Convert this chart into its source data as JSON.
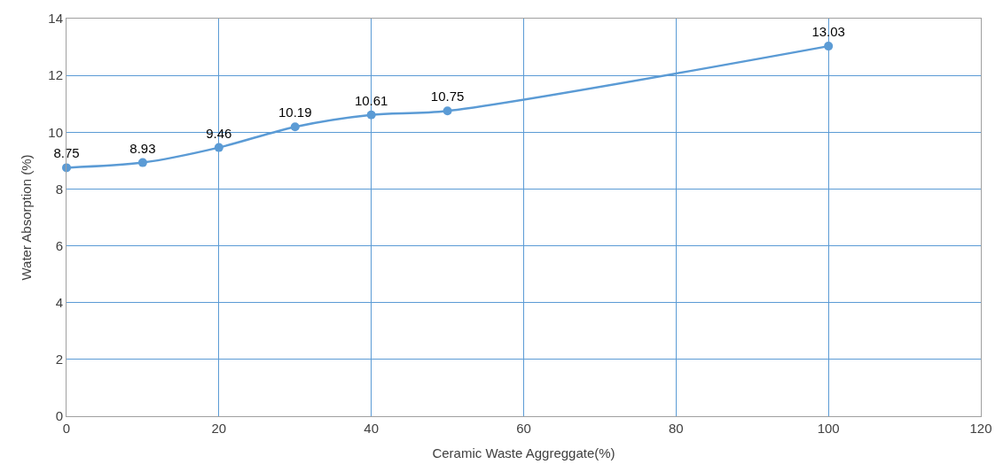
{
  "chart_data": {
    "type": "line",
    "xlabel": "Ceramic Waste Aggreggate(%)",
    "ylabel": "Water Absorption (%)",
    "x": [
      0,
      10,
      20,
      30,
      40,
      50,
      100
    ],
    "series": [
      {
        "color": "#5b9bd5",
        "values": [
          8.75,
          8.93,
          9.46,
          10.19,
          10.61,
          10.75,
          13.03
        ]
      }
    ],
    "xlim": [
      0,
      120
    ],
    "xticks": [
      0,
      20,
      40,
      60,
      80,
      100,
      120
    ],
    "ylim": [
      0,
      14
    ],
    "yticks": [
      0,
      2,
      4,
      6,
      8,
      10,
      12,
      14
    ],
    "grid": true,
    "marker": "circle",
    "line_style": "solid",
    "data_labels": true
  }
}
